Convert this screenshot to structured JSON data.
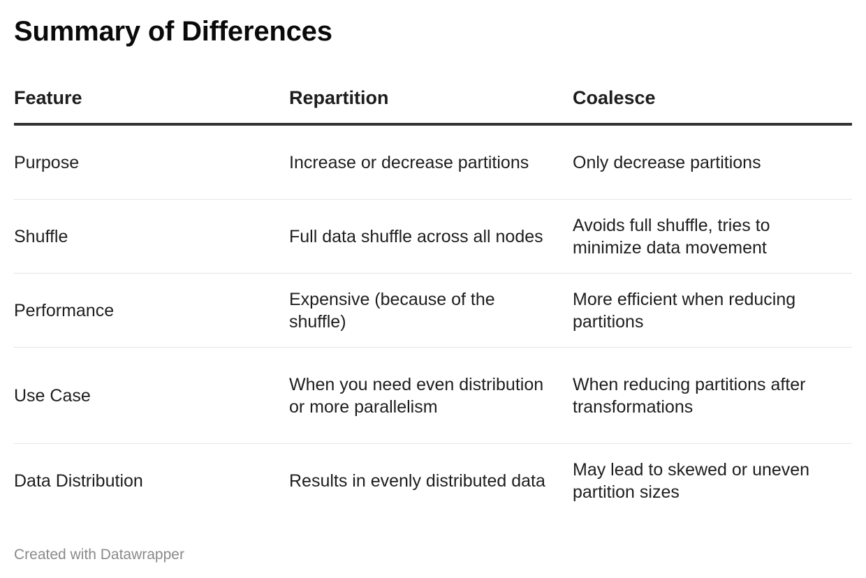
{
  "title": "Summary of Differences",
  "table": {
    "headers": [
      "Feature",
      "Repartition",
      "Coalesce"
    ],
    "rows": [
      [
        "Purpose",
        "Increase or decrease partitions",
        "Only decrease partitions"
      ],
      [
        "Shuffle",
        "Full data shuffle across all nodes",
        "Avoids full shuffle, tries to minimize data movement"
      ],
      [
        "Performance",
        "Expensive (because of the shuffle)",
        "More efficient when reducing partitions"
      ],
      [
        "Use Case",
        "When you need even distribution or more parallelism",
        "When reducing partitions after transformations"
      ],
      [
        "Data Distribution",
        "Results in evenly distributed data",
        "May lead to skewed or uneven partition sizes"
      ]
    ]
  },
  "footer": "Created with Datawrapper",
  "colors": {
    "text": "#1d1d1d",
    "header_rule": "#333333",
    "row_rule": "#e5e5e5",
    "footer_text": "#8a8a8a"
  }
}
